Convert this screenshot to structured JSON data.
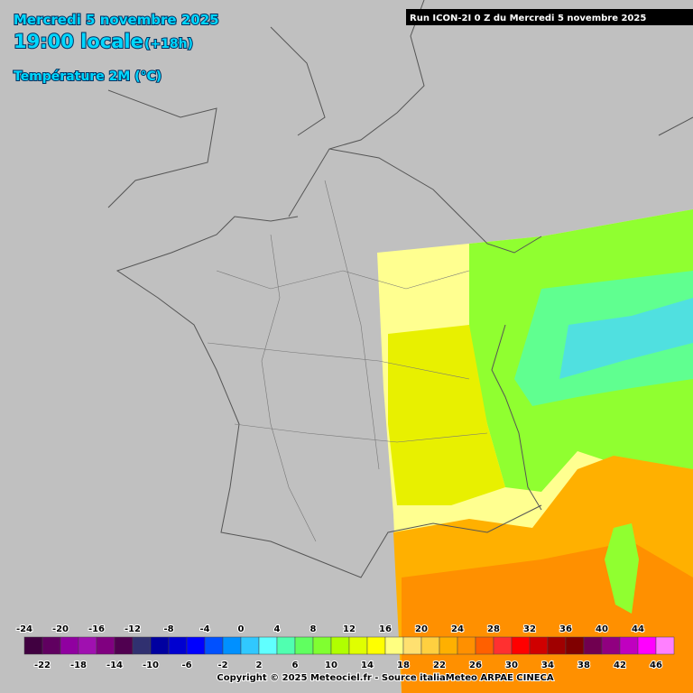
{
  "header": {
    "date": "Mercredi 5 novembre 2025",
    "time": "19:00 locale",
    "offset": "(+18h)",
    "parameter": "Température 2M (°C)"
  },
  "run": "Run ICON-2I 0 Z du Mercredi 5 novembre 2025",
  "legend": {
    "items": [
      {
        "value": -24,
        "color": "#400040"
      },
      {
        "value": -22,
        "color": "#600060"
      },
      {
        "value": -20,
        "color": "#9000a0"
      },
      {
        "value": -18,
        "color": "#a010b0"
      },
      {
        "value": -16,
        "color": "#800080"
      },
      {
        "value": -14,
        "color": "#500050"
      },
      {
        "value": -12,
        "color": "#303070"
      },
      {
        "value": -10,
        "color": "#0000a0"
      },
      {
        "value": -8,
        "color": "#0000d0"
      },
      {
        "value": -6,
        "color": "#0000ff"
      },
      {
        "value": -4,
        "color": "#0050ff"
      },
      {
        "value": -2,
        "color": "#0090ff"
      },
      {
        "value": 0,
        "color": "#30c8ff"
      },
      {
        "value": 2,
        "color": "#60ffff"
      },
      {
        "value": 4,
        "color": "#50ffb0"
      },
      {
        "value": 6,
        "color": "#60ff60"
      },
      {
        "value": 8,
        "color": "#80ff30"
      },
      {
        "value": 10,
        "color": "#b0ff00"
      },
      {
        "value": 12,
        "color": "#e0ff00"
      },
      {
        "value": 14,
        "color": "#ffff00"
      },
      {
        "value": 16,
        "color": "#ffff80"
      },
      {
        "value": 18,
        "color": "#ffe070"
      },
      {
        "value": 20,
        "color": "#ffd040"
      },
      {
        "value": 22,
        "color": "#ffb000"
      },
      {
        "value": 24,
        "color": "#ff9000"
      },
      {
        "value": 26,
        "color": "#ff6000"
      },
      {
        "value": 28,
        "color": "#ff3030"
      },
      {
        "value": 30,
        "color": "#ff0000"
      },
      {
        "value": 32,
        "color": "#d00000"
      },
      {
        "value": 34,
        "color": "#a00000"
      },
      {
        "value": 36,
        "color": "#800000"
      },
      {
        "value": 38,
        "color": "#700050"
      },
      {
        "value": 40,
        "color": "#900080"
      },
      {
        "value": 42,
        "color": "#c000c0"
      },
      {
        "value": 44,
        "color": "#ff00ff"
      },
      {
        "value": 46,
        "color": "#ff80ff"
      }
    ]
  },
  "copyright": "Copyright © 2025 Meteociel.fr - Source italiaMeteo ARPAE CINECA"
}
